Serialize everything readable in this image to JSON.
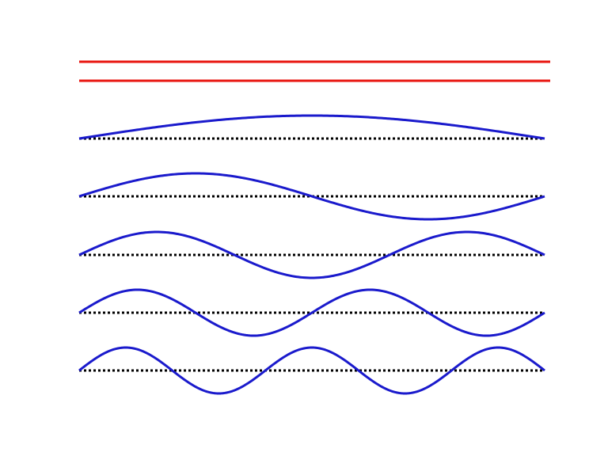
{
  "diagram": {
    "kind": "standing-wave-harmonics",
    "boundary_color": "#e8150f",
    "wave_color": "#1a1acc",
    "baseline_color": "#000000",
    "boundary_lines": [
      {
        "name": "upper-boundary"
      },
      {
        "name": "lower-boundary"
      }
    ],
    "modes": [
      {
        "name": "mode-1",
        "half_wavelengths": 1,
        "amplitude": 1,
        "sign": 1
      },
      {
        "name": "mode-2",
        "half_wavelengths": 2,
        "amplitude": 1,
        "sign": 1
      },
      {
        "name": "mode-3",
        "half_wavelengths": 3,
        "amplitude": 1,
        "sign": 1
      },
      {
        "name": "mode-4",
        "half_wavelengths": 4,
        "amplitude": 1,
        "sign": 1
      },
      {
        "name": "mode-5",
        "half_wavelengths": 5,
        "amplitude": 1,
        "sign": 1
      }
    ]
  }
}
